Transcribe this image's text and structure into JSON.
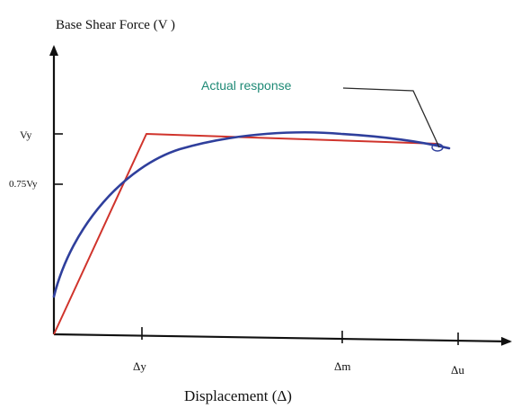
{
  "title": "Base Shear Force (V )",
  "x_axis_label": "Displacement (Δ)",
  "y_ticks": {
    "vy": "Vy",
    "v075": "0.75Vy"
  },
  "x_ticks": {
    "dy": "Δy",
    "dm": "Δm",
    "du": "Δu"
  },
  "annotation": "Actual response",
  "colors": {
    "bilinear": "#d0342c",
    "actual": "#2f3f9c",
    "annotation_text": "#1f8a76",
    "axes": "#111111"
  }
}
